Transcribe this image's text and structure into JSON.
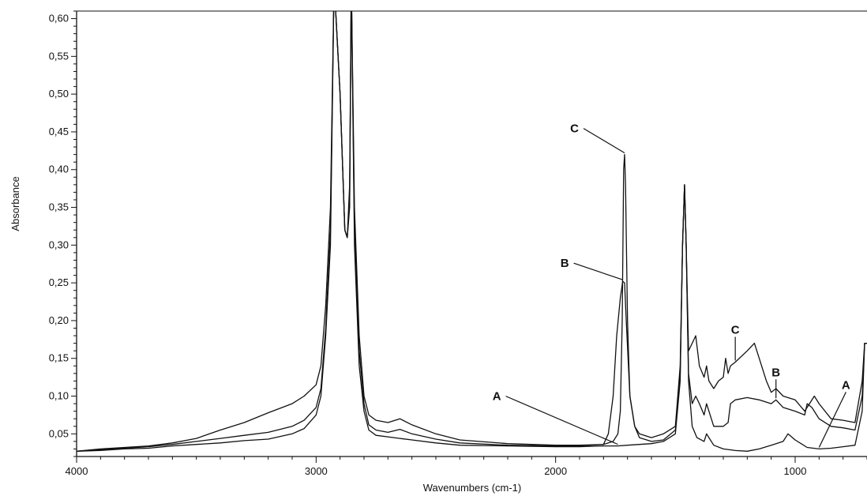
{
  "chart_data": {
    "type": "line",
    "xlabel": "Wavenumbers (cm-1)",
    "ylabel": "Absorbance",
    "xlim": [
      4000,
      700
    ],
    "x_reversed": true,
    "ylim": [
      0.02,
      0.61
    ],
    "x_ticks": [
      4000,
      3000,
      2000,
      1000
    ],
    "x_tick_labels": [
      "4000",
      "3000",
      "2000",
      "1000"
    ],
    "y_ticks": [
      0.05,
      0.1,
      0.15,
      0.2,
      0.25,
      0.3,
      0.35,
      0.4,
      0.45,
      0.5,
      0.55,
      0.6
    ],
    "y_tick_labels": [
      "0,05",
      "0,10",
      "0,15",
      "0,20",
      "0,25",
      "0,30",
      "0,35",
      "0,40",
      "0,45",
      "0,50",
      "0,55",
      "0,60"
    ],
    "grid": false,
    "series": [
      {
        "name": "A",
        "points": [
          [
            4000,
            0.027
          ],
          [
            3900,
            0.028
          ],
          [
            3800,
            0.03
          ],
          [
            3700,
            0.031
          ],
          [
            3600,
            0.034
          ],
          [
            3500,
            0.036
          ],
          [
            3400,
            0.038
          ],
          [
            3300,
            0.041
          ],
          [
            3200,
            0.043
          ],
          [
            3100,
            0.05
          ],
          [
            3050,
            0.057
          ],
          [
            3000,
            0.075
          ],
          [
            2980,
            0.1
          ],
          [
            2960,
            0.18
          ],
          [
            2940,
            0.3
          ],
          [
            2925,
            0.65
          ],
          [
            2900,
            0.5
          ],
          [
            2880,
            0.32
          ],
          [
            2870,
            0.31
          ],
          [
            2860,
            0.35
          ],
          [
            2853,
            0.65
          ],
          [
            2840,
            0.3
          ],
          [
            2820,
            0.14
          ],
          [
            2800,
            0.08
          ],
          [
            2780,
            0.055
          ],
          [
            2750,
            0.048
          ],
          [
            2700,
            0.046
          ],
          [
            2650,
            0.044
          ],
          [
            2600,
            0.042
          ],
          [
            2500,
            0.038
          ],
          [
            2400,
            0.035
          ],
          [
            2200,
            0.034
          ],
          [
            2000,
            0.033
          ],
          [
            1900,
            0.033
          ],
          [
            1800,
            0.034
          ],
          [
            1740,
            0.034
          ],
          [
            1700,
            0.035
          ],
          [
            1600,
            0.037
          ],
          [
            1550,
            0.04
          ],
          [
            1500,
            0.05
          ],
          [
            1480,
            0.12
          ],
          [
            1470,
            0.3
          ],
          [
            1462,
            0.38
          ],
          [
            1455,
            0.3
          ],
          [
            1445,
            0.12
          ],
          [
            1430,
            0.06
          ],
          [
            1410,
            0.045
          ],
          [
            1380,
            0.04
          ],
          [
            1370,
            0.05
          ],
          [
            1360,
            0.045
          ],
          [
            1340,
            0.035
          ],
          [
            1300,
            0.03
          ],
          [
            1250,
            0.028
          ],
          [
            1200,
            0.027
          ],
          [
            1150,
            0.03
          ],
          [
            1100,
            0.035
          ],
          [
            1050,
            0.04
          ],
          [
            1030,
            0.05
          ],
          [
            1000,
            0.042
          ],
          [
            950,
            0.032
          ],
          [
            900,
            0.03
          ],
          [
            850,
            0.031
          ],
          [
            800,
            0.033
          ],
          [
            750,
            0.035
          ],
          [
            720,
            0.08
          ],
          [
            710,
            0.17
          ],
          [
            700,
            0.17
          ]
        ]
      },
      {
        "name": "B",
        "points": [
          [
            4000,
            0.027
          ],
          [
            3900,
            0.029
          ],
          [
            3800,
            0.031
          ],
          [
            3700,
            0.033
          ],
          [
            3600,
            0.036
          ],
          [
            3500,
            0.04
          ],
          [
            3400,
            0.044
          ],
          [
            3300,
            0.048
          ],
          [
            3200,
            0.052
          ],
          [
            3100,
            0.06
          ],
          [
            3050,
            0.068
          ],
          [
            3000,
            0.085
          ],
          [
            2980,
            0.11
          ],
          [
            2960,
            0.19
          ],
          [
            2940,
            0.32
          ],
          [
            2925,
            0.65
          ],
          [
            2900,
            0.5
          ],
          [
            2880,
            0.32
          ],
          [
            2870,
            0.31
          ],
          [
            2860,
            0.36
          ],
          [
            2853,
            0.65
          ],
          [
            2840,
            0.32
          ],
          [
            2820,
            0.16
          ],
          [
            2800,
            0.09
          ],
          [
            2780,
            0.062
          ],
          [
            2750,
            0.055
          ],
          [
            2700,
            0.052
          ],
          [
            2650,
            0.056
          ],
          [
            2600,
            0.05
          ],
          [
            2500,
            0.043
          ],
          [
            2400,
            0.038
          ],
          [
            2200,
            0.035
          ],
          [
            2000,
            0.034
          ],
          [
            1900,
            0.034
          ],
          [
            1800,
            0.036
          ],
          [
            1780,
            0.05
          ],
          [
            1760,
            0.1
          ],
          [
            1745,
            0.18
          ],
          [
            1730,
            0.23
          ],
          [
            1720,
            0.252
          ],
          [
            1712,
            0.25
          ],
          [
            1705,
            0.2
          ],
          [
            1690,
            0.1
          ],
          [
            1670,
            0.06
          ],
          [
            1650,
            0.045
          ],
          [
            1600,
            0.04
          ],
          [
            1550,
            0.042
          ],
          [
            1500,
            0.055
          ],
          [
            1480,
            0.13
          ],
          [
            1470,
            0.3
          ],
          [
            1462,
            0.38
          ],
          [
            1455,
            0.3
          ],
          [
            1445,
            0.13
          ],
          [
            1430,
            0.09
          ],
          [
            1415,
            0.1
          ],
          [
            1400,
            0.09
          ],
          [
            1380,
            0.075
          ],
          [
            1370,
            0.09
          ],
          [
            1360,
            0.08
          ],
          [
            1340,
            0.06
          ],
          [
            1300,
            0.06
          ],
          [
            1280,
            0.065
          ],
          [
            1270,
            0.09
          ],
          [
            1250,
            0.095
          ],
          [
            1200,
            0.098
          ],
          [
            1150,
            0.095
          ],
          [
            1100,
            0.09
          ],
          [
            1080,
            0.095
          ],
          [
            1050,
            0.085
          ],
          [
            1000,
            0.08
          ],
          [
            960,
            0.075
          ],
          [
            950,
            0.09
          ],
          [
            930,
            0.085
          ],
          [
            900,
            0.07
          ],
          [
            850,
            0.06
          ],
          [
            800,
            0.058
          ],
          [
            750,
            0.055
          ],
          [
            720,
            0.1
          ],
          [
            710,
            0.17
          ],
          [
            700,
            0.17
          ]
        ]
      },
      {
        "name": "C",
        "points": [
          [
            4000,
            0.027
          ],
          [
            3900,
            0.03
          ],
          [
            3800,
            0.032
          ],
          [
            3700,
            0.034
          ],
          [
            3600,
            0.038
          ],
          [
            3500,
            0.044
          ],
          [
            3400,
            0.055
          ],
          [
            3300,
            0.065
          ],
          [
            3200,
            0.078
          ],
          [
            3100,
            0.09
          ],
          [
            3050,
            0.1
          ],
          [
            3000,
            0.115
          ],
          [
            2980,
            0.14
          ],
          [
            2960,
            0.22
          ],
          [
            2940,
            0.35
          ],
          [
            2925,
            0.65
          ],
          [
            2900,
            0.5
          ],
          [
            2880,
            0.32
          ],
          [
            2870,
            0.31
          ],
          [
            2860,
            0.38
          ],
          [
            2853,
            0.65
          ],
          [
            2840,
            0.35
          ],
          [
            2820,
            0.18
          ],
          [
            2800,
            0.1
          ],
          [
            2780,
            0.075
          ],
          [
            2750,
            0.068
          ],
          [
            2700,
            0.065
          ],
          [
            2650,
            0.07
          ],
          [
            2600,
            0.062
          ],
          [
            2500,
            0.05
          ],
          [
            2400,
            0.042
          ],
          [
            2200,
            0.037
          ],
          [
            2000,
            0.035
          ],
          [
            1900,
            0.035
          ],
          [
            1800,
            0.036
          ],
          [
            1760,
            0.04
          ],
          [
            1740,
            0.05
          ],
          [
            1730,
            0.08
          ],
          [
            1722,
            0.2
          ],
          [
            1716,
            0.4
          ],
          [
            1712,
            0.42
          ],
          [
            1708,
            0.38
          ],
          [
            1700,
            0.2
          ],
          [
            1690,
            0.1
          ],
          [
            1670,
            0.06
          ],
          [
            1650,
            0.05
          ],
          [
            1600,
            0.045
          ],
          [
            1550,
            0.05
          ],
          [
            1500,
            0.06
          ],
          [
            1480,
            0.14
          ],
          [
            1470,
            0.3
          ],
          [
            1462,
            0.38
          ],
          [
            1455,
            0.3
          ],
          [
            1445,
            0.16
          ],
          [
            1430,
            0.17
          ],
          [
            1415,
            0.18
          ],
          [
            1400,
            0.14
          ],
          [
            1380,
            0.125
          ],
          [
            1370,
            0.14
          ],
          [
            1360,
            0.12
          ],
          [
            1340,
            0.11
          ],
          [
            1320,
            0.12
          ],
          [
            1300,
            0.125
          ],
          [
            1290,
            0.15
          ],
          [
            1280,
            0.13
          ],
          [
            1270,
            0.14
          ],
          [
            1250,
            0.145
          ],
          [
            1200,
            0.16
          ],
          [
            1170,
            0.17
          ],
          [
            1150,
            0.15
          ],
          [
            1120,
            0.12
          ],
          [
            1100,
            0.105
          ],
          [
            1080,
            0.11
          ],
          [
            1050,
            0.1
          ],
          [
            1000,
            0.095
          ],
          [
            960,
            0.08
          ],
          [
            940,
            0.09
          ],
          [
            920,
            0.1
          ],
          [
            900,
            0.09
          ],
          [
            850,
            0.07
          ],
          [
            800,
            0.068
          ],
          [
            750,
            0.065
          ],
          [
            720,
            0.12
          ],
          [
            710,
            0.17
          ],
          [
            700,
            0.17
          ]
        ]
      }
    ],
    "annotations": [
      {
        "text": "C",
        "target": "C",
        "x": 1712,
        "y": 0.42
      },
      {
        "text": "B",
        "target": "B",
        "x": 1720,
        "y": 0.252
      },
      {
        "text": "A",
        "target": "A",
        "x": 1740,
        "y": 0.034
      },
      {
        "text": "C",
        "target": "C",
        "x": 1250,
        "y": 0.145
      },
      {
        "text": "B",
        "target": "B",
        "x": 1080,
        "y": 0.095
      },
      {
        "text": "A",
        "target": "A",
        "x": 900,
        "y": 0.03
      }
    ]
  }
}
